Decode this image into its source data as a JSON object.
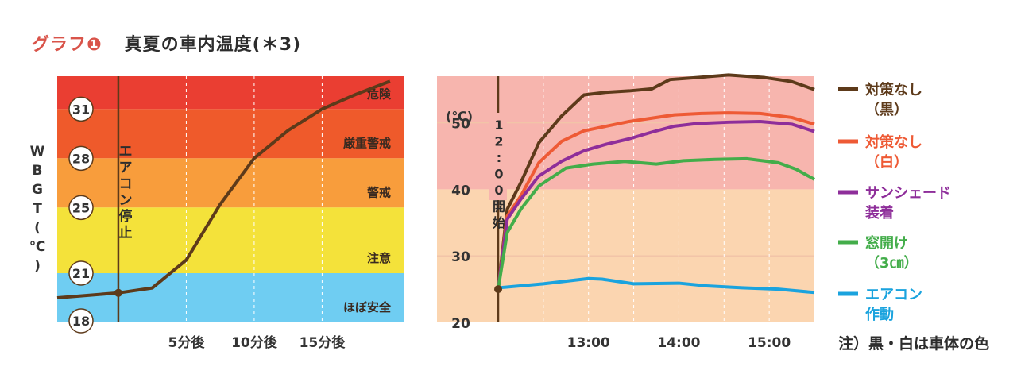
{
  "title": {
    "label": "グラフ❶",
    "text": "真夏の車内温度(＊3)"
  },
  "note": "注）黒・白は車体の色",
  "chart_data": [
    {
      "type": "line",
      "ylabel": "WBGT(℃)",
      "ylim": [
        18,
        33
      ],
      "y_ticks": [
        31,
        28,
        25,
        21,
        18
      ],
      "x_ticks": [
        {
          "x": 5,
          "label": "5分後"
        },
        {
          "x": 10,
          "label": "10分後"
        },
        {
          "x": 15,
          "label": "15分後"
        }
      ],
      "xlim": [
        -4.5,
        21
      ],
      "bands": [
        {
          "from": 31,
          "to": 33,
          "label": "危険",
          "color": "#ea3e32"
        },
        {
          "from": 28,
          "to": 31,
          "label": "厳重警戒",
          "color": "#ef5a2b"
        },
        {
          "from": 25,
          "to": 28,
          "label": "警戒",
          "color": "#f89d3c"
        },
        {
          "from": 21,
          "to": 25,
          "label": "注意",
          "color": "#f4e23a"
        },
        {
          "from": 18,
          "to": 21,
          "label": "ほぼ安全",
          "color": "#6fcdf2"
        }
      ],
      "event": {
        "x": 0,
        "label": "エアコン停止"
      },
      "series": [
        {
          "color": "#5d3a1a",
          "x": [
            -4.5,
            0,
            2.5,
            5,
            7.5,
            10,
            12.5,
            15,
            17.5,
            20
          ],
          "y": [
            19.5,
            19.8,
            20.1,
            21.8,
            25.2,
            28.0,
            29.7,
            31.0,
            31.9,
            32.7
          ]
        }
      ]
    },
    {
      "type": "line",
      "ylabel": "(℃)",
      "ylim": [
        20,
        57
      ],
      "y_ticks": [
        20,
        30,
        40,
        50
      ],
      "xlim": [
        12.0,
        15.5
      ],
      "x_ticks": [
        {
          "x": 13.0,
          "label": "13:00"
        },
        {
          "x": 14.0,
          "label": "14:00"
        },
        {
          "x": 15.0,
          "label": "15:00"
        }
      ],
      "bands": [
        {
          "from": 40,
          "to": 57,
          "color": "#f7b5ae"
        },
        {
          "from": 20,
          "to": 40,
          "color": "#fbd5b0"
        }
      ],
      "event": {
        "x": 12.0,
        "label": "12:00開始"
      },
      "series": [
        {
          "name": "対策なし（黒）",
          "color": "#5d3a1a",
          "x": [
            12.0,
            12.1,
            12.25,
            12.45,
            12.7,
            12.95,
            13.2,
            13.45,
            13.7,
            13.9,
            14.2,
            14.55,
            14.95,
            15.25,
            15.5
          ],
          "y": [
            25,
            37,
            41,
            47,
            51,
            54.2,
            54.6,
            54.8,
            55.1,
            56.5,
            56.8,
            57.2,
            56.8,
            56.2,
            55.0
          ]
        },
        {
          "name": "対策なし（白）",
          "color": "#ee5a35",
          "x": [
            12.0,
            12.1,
            12.25,
            12.45,
            12.7,
            12.95,
            13.2,
            13.45,
            13.7,
            13.95,
            14.25,
            14.55,
            14.9,
            15.25,
            15.5
          ],
          "y": [
            25,
            36,
            39,
            44,
            47.2,
            48.8,
            49.5,
            50.2,
            50.7,
            51.2,
            51.4,
            51.5,
            51.4,
            50.8,
            49.8
          ]
        },
        {
          "name": "サンシェード装着",
          "color": "#8e2e9a",
          "x": [
            12.0,
            12.1,
            12.25,
            12.45,
            12.7,
            12.95,
            13.2,
            13.45,
            13.7,
            13.95,
            14.2,
            14.55,
            14.9,
            15.25,
            15.5
          ],
          "y": [
            25,
            35.5,
            38.5,
            42,
            44.2,
            45.8,
            46.8,
            47.6,
            48.6,
            49.5,
            49.9,
            50.1,
            50.2,
            49.8,
            48.7
          ]
        },
        {
          "name": "窓開け（3㎝）",
          "color": "#43ad4a",
          "x": [
            12.0,
            12.1,
            12.25,
            12.45,
            12.75,
            13.05,
            13.4,
            13.75,
            14.05,
            14.4,
            14.75,
            15.1,
            15.3,
            15.5
          ],
          "y": [
            25,
            33.5,
            37,
            40.5,
            43.2,
            43.8,
            44.2,
            43.8,
            44.3,
            44.5,
            44.6,
            44.0,
            43.0,
            41.5
          ]
        },
        {
          "name": "エアコン作動",
          "color": "#1aa3de",
          "x": [
            12.0,
            12.5,
            13.0,
            13.15,
            13.5,
            14.0,
            14.3,
            14.7,
            15.1,
            15.5
          ],
          "y": [
            25.2,
            25.8,
            26.6,
            26.5,
            25.8,
            25.9,
            25.5,
            25.2,
            25.0,
            24.5
          ]
        }
      ]
    }
  ]
}
